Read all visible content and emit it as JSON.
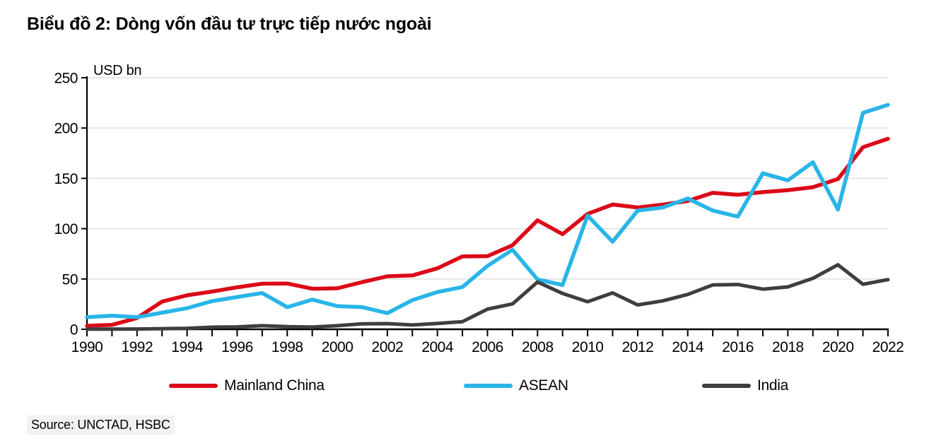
{
  "title": "Biểu đồ 2: Dòng vốn đầu tư trực tiếp nước ngoài",
  "source": "Source: UNCTAD, HSBC",
  "colors": {
    "gridline": "#DCDCDC",
    "axis": "#000000",
    "text": "#000000",
    "source_highlight": "#F2F2F2"
  },
  "chart_data": {
    "type": "line",
    "title": "Biểu đồ 2: Dòng vốn đầu tư trực tiếp nước ngoài",
    "ylabel": "USD bn",
    "xlabel": "",
    "ylim": [
      0,
      250
    ],
    "y_ticks": [
      0,
      50,
      100,
      150,
      200,
      250
    ],
    "grid": "horizontal",
    "legend_position": "bottom",
    "x": [
      1990,
      1991,
      1992,
      1993,
      1994,
      1995,
      1996,
      1997,
      1998,
      1999,
      2000,
      2001,
      2002,
      2003,
      2004,
      2005,
      2006,
      2007,
      2008,
      2009,
      2010,
      2011,
      2012,
      2013,
      2014,
      2015,
      2016,
      2017,
      2018,
      2019,
      2020,
      2021,
      2022
    ],
    "x_tick_labels": [
      "1990",
      "1992",
      "1994",
      "1996",
      "1998",
      "2000",
      "2002",
      "2004",
      "2006",
      "2008",
      "2010",
      "2012",
      "2014",
      "2016",
      "2018",
      "2020",
      "2022"
    ],
    "series": [
      {
        "name": "Mainland China",
        "color": "#DB0A19",
        "values": [
          3.5,
          4.4,
          11.2,
          27.5,
          33.8,
          37.5,
          41.7,
          45.3,
          45.5,
          40.3,
          40.7,
          46.9,
          52.7,
          53.5,
          60.6,
          72.4,
          72.7,
          83.5,
          108.3,
          94.5,
          114.7,
          124.0,
          121.1,
          123.9,
          127.5,
          135.6,
          133.7,
          136.3,
          138.3,
          141.2,
          149.3,
          181.0,
          189.3
        ]
      },
      {
        "name": "ASEAN",
        "color": "#29B5E8",
        "values": [
          12.0,
          13.5,
          12.0,
          16.5,
          21.0,
          28.0,
          32.0,
          36.0,
          22.0,
          29.5,
          23.0,
          22.0,
          16.0,
          29.0,
          37.0,
          42.0,
          63.0,
          79.0,
          49.5,
          44.0,
          113.0,
          87.0,
          118.0,
          121.0,
          130.0,
          118.0,
          112.0,
          155.0,
          148.0,
          166.0,
          119.0,
          215.0,
          223.0
        ]
      },
      {
        "name": "India",
        "color": "#3E3E3E",
        "values": [
          0.2,
          0.2,
          0.3,
          0.6,
          1.0,
          2.1,
          2.4,
          3.6,
          2.6,
          2.2,
          3.6,
          5.5,
          5.6,
          4.3,
          5.8,
          7.6,
          20.0,
          25.2,
          47.0,
          35.6,
          27.4,
          36.2,
          24.2,
          28.2,
          34.6,
          44.1,
          44.5,
          39.9,
          42.1,
          50.6,
          64.1,
          44.7,
          49.4
        ]
      }
    ]
  }
}
